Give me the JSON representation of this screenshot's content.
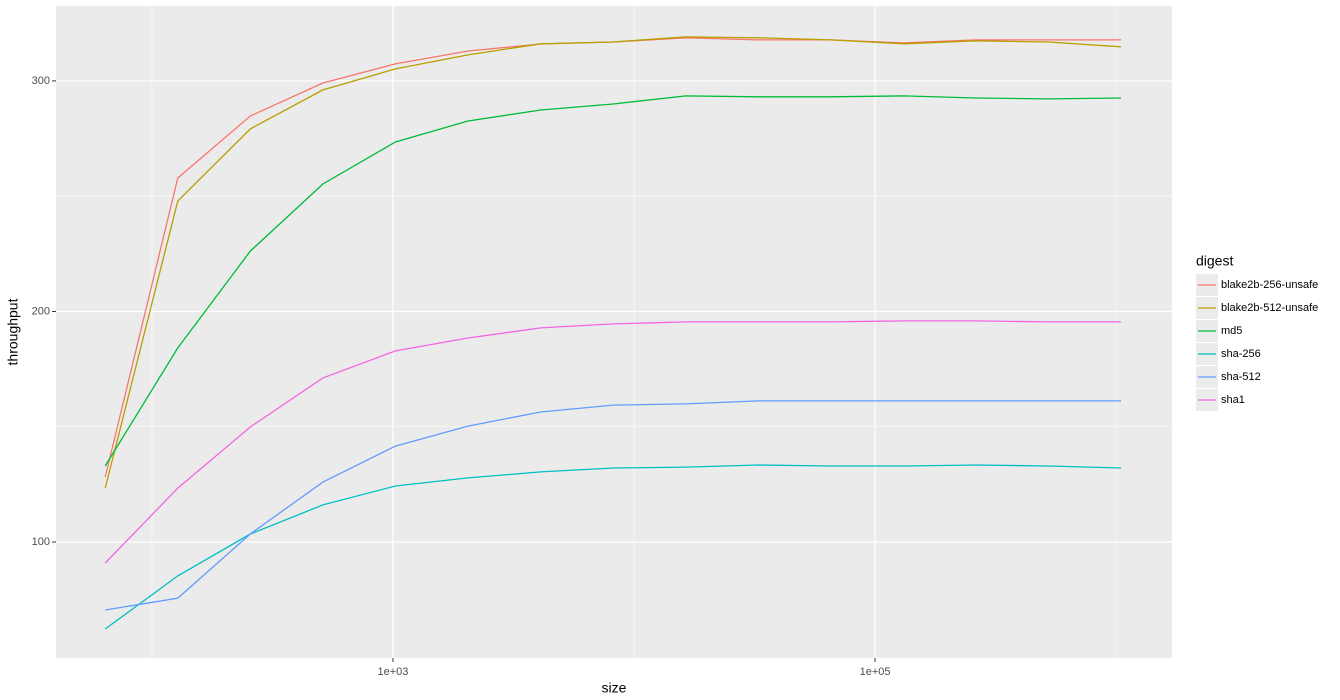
{
  "chart_data": {
    "type": "line",
    "x_label": "size",
    "y_label": "throughput",
    "x": [
      64,
      128,
      256,
      512,
      1024,
      2048,
      4096,
      8192,
      16384,
      32768,
      65536,
      131072,
      262144,
      524288,
      1048576
    ],
    "xscale": "log",
    "xlim": [
      40,
      1706000
    ],
    "xticks": [
      {
        "value": 1000,
        "label": "1e+03"
      },
      {
        "value": 100000,
        "label": "1e+05"
      }
    ],
    "x_minor_grid": [
      100,
      10000,
      1000000
    ],
    "ylim": [
      49.7,
      332.5
    ],
    "yticks": [
      100,
      200,
      300
    ],
    "y_minor_grid": [
      150,
      250
    ],
    "grid": true,
    "legend_title": "digest",
    "legend_position": "right",
    "series": [
      {
        "name": "blake2b-256-unsafe",
        "color": "#F8766D",
        "values": [
          128.2,
          257.9,
          284.8,
          299.1,
          307.4,
          313,
          316,
          316.9,
          318.7,
          317.8,
          317.8,
          316.5,
          317.8,
          317.8,
          317.8
        ]
      },
      {
        "name": "blake2b-512-unsafe",
        "color": "#B79F00",
        "values": [
          123.4,
          247.9,
          279.2,
          296.1,
          305.2,
          311.3,
          316.1,
          316.9,
          319.1,
          318.7,
          317.8,
          316.1,
          317.4,
          316.9,
          314.8
        ]
      },
      {
        "name": "md5",
        "color": "#00BA38",
        "values": [
          133,
          184.2,
          226.2,
          255.3,
          273.5,
          282.6,
          287.4,
          290,
          293.5,
          293.1,
          293.1,
          293.5,
          292.6,
          292.2,
          292.6
        ]
      },
      {
        "name": "sha-256",
        "color": "#00BFC4",
        "values": [
          62.3,
          85.3,
          103.5,
          116.1,
          124.3,
          127.8,
          130.4,
          132.1,
          132.5,
          133.4,
          133,
          133,
          133.4,
          133,
          132.1
        ]
      },
      {
        "name": "sha-512",
        "color": "#619CFF",
        "values": [
          70.5,
          75.7,
          103.5,
          126,
          141.6,
          150.3,
          156.4,
          159.4,
          159.9,
          161.2,
          161.2,
          161.2,
          161.2,
          161.2,
          161.2
        ]
      },
      {
        "name": "sha1",
        "color": "#F564E3",
        "values": [
          90.9,
          123.4,
          149.9,
          171.2,
          182.9,
          188.5,
          192.9,
          194.6,
          195.5,
          195.5,
          195.5,
          195.9,
          195.9,
          195.5,
          195.5
        ]
      }
    ]
  }
}
